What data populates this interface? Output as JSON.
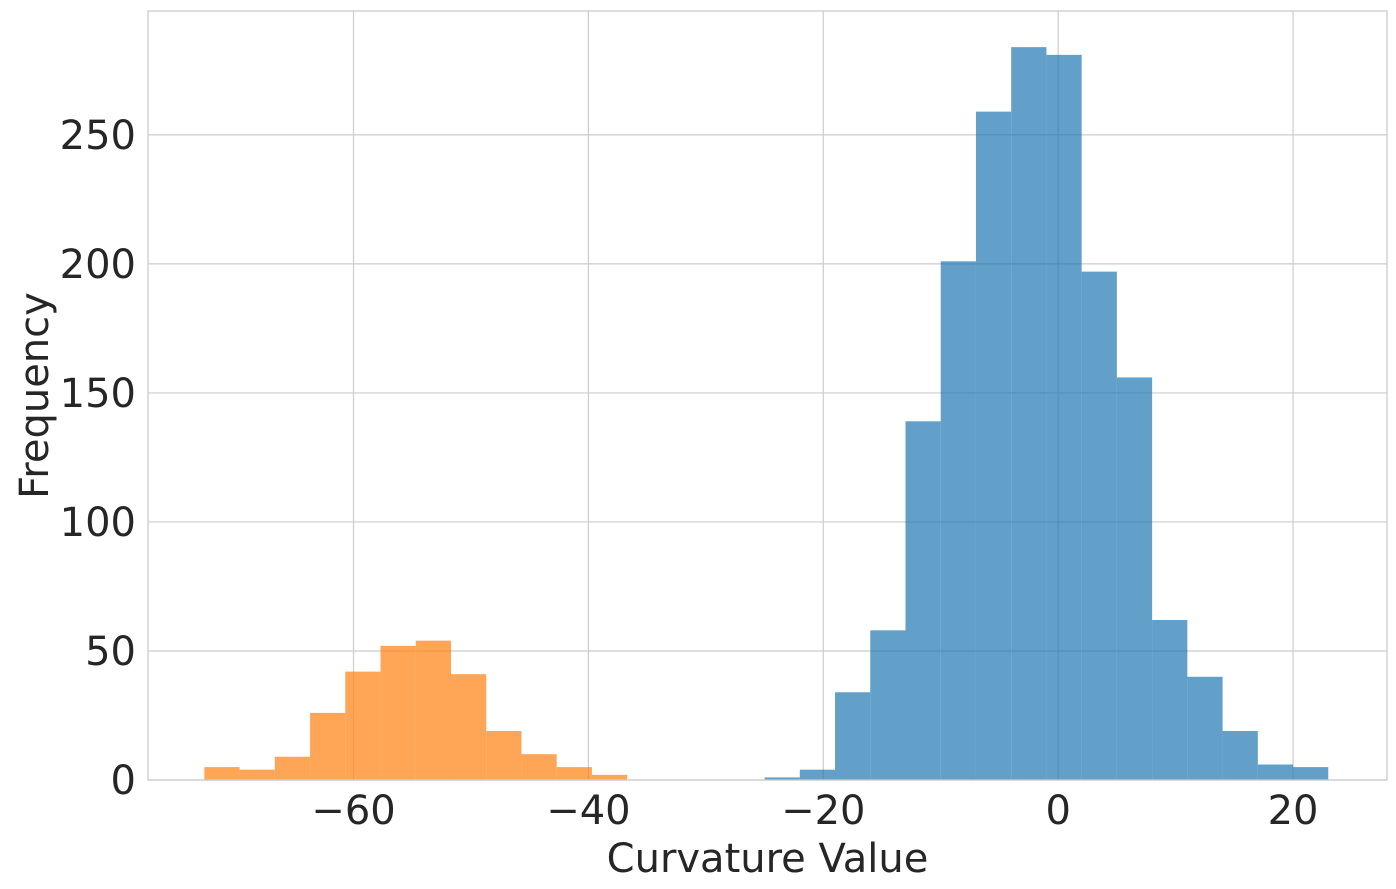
{
  "chart_data": {
    "type": "histogram",
    "title": "",
    "xlabel": "Curvature Value",
    "ylabel": "Frequency",
    "xlim": [
      -77.5,
      28.0
    ],
    "ylim": [
      0,
      298
    ],
    "xticks": [
      -60,
      -40,
      -20,
      0,
      20
    ],
    "xtick_labels": [
      "−60",
      "−40",
      "−20",
      "0",
      "20"
    ],
    "yticks": [
      0,
      50,
      100,
      150,
      200,
      250
    ],
    "ytick_labels": [
      "0",
      "50",
      "100",
      "150",
      "200",
      "250"
    ],
    "grid": true,
    "legend": "none",
    "series": [
      {
        "color": "#ff7f0e",
        "opacity": 0.7,
        "bin_width": 3.0,
        "bin_starts": [
          -72.7,
          -69.7,
          -66.7,
          -63.7,
          -60.7,
          -57.7,
          -54.7,
          -51.7,
          -48.7,
          -45.7,
          -42.7,
          -39.7
        ],
        "values": [
          5,
          4,
          9,
          26,
          42,
          52,
          54,
          41,
          19,
          10,
          5,
          2
        ]
      },
      {
        "color": "#1f77b4",
        "opacity": 0.7,
        "bin_width": 3.0,
        "bin_starts": [
          -25.0,
          -22.0,
          -19.0,
          -16.0,
          -13.0,
          -10.0,
          -7.0,
          -4.0,
          -1.0,
          2.0,
          5.0,
          8.0,
          11.0,
          14.0,
          17.0,
          20.0
        ],
        "values": [
          1,
          4,
          34,
          58,
          139,
          201,
          259,
          284,
          281,
          197,
          156,
          62,
          40,
          19,
          6,
          5
        ]
      }
    ]
  }
}
